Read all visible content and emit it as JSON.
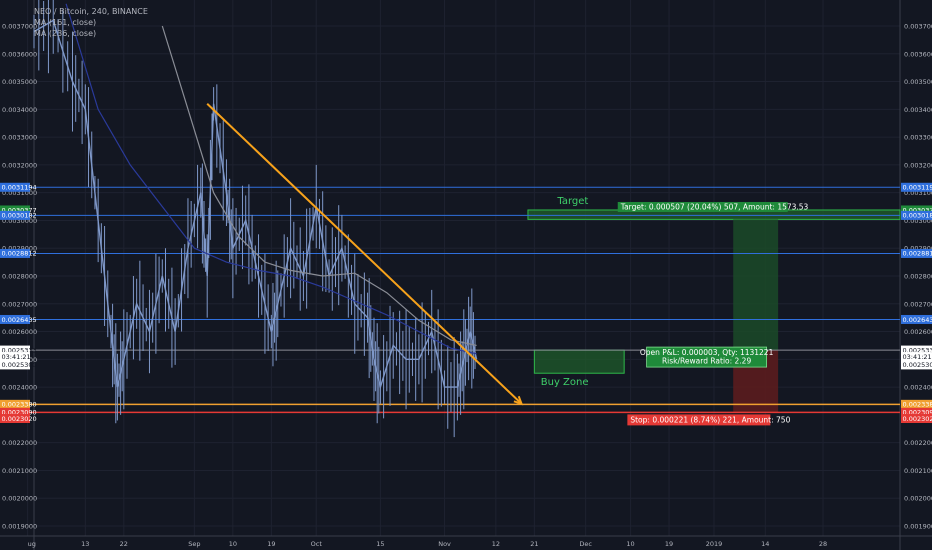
{
  "header": {
    "symbol_line": "NEO / Bitcoin, 240, BINANCE",
    "ma1": "MA (161, close)",
    "ma2": "MA (236, close)"
  },
  "colors": {
    "background": "#131722",
    "grid": "#1e2230",
    "candle": "#7f98c9",
    "ma161": "#2a3a9a",
    "ma236": "#8a8d96",
    "trendline": "#f7a21b",
    "horizontal": "#2f6fdc",
    "stop_line": "#e53935",
    "orange_line": "#f0a030",
    "target_zone": "#1f5c2b",
    "buy_zone": "#1f5c2b"
  },
  "chart_data": {
    "type": "line",
    "title": "",
    "xlabel": "",
    "ylabel": "",
    "x_ticks": [
      "ug",
      "13",
      "22",
      "Sep",
      "10",
      "19",
      "Oct",
      "15",
      "Nov",
      "12",
      "21",
      "Dec",
      "10",
      "19",
      "2019",
      "14",
      "28"
    ],
    "y_ticks": [
      "0.0037000",
      "0.0036000",
      "0.0035000",
      "0.0034000",
      "0.0033000",
      "0.0032000",
      "0.0031000",
      "0.0030000",
      "0.0029000",
      "0.0028000",
      "0.0027000",
      "0.0026000",
      "0.0025000",
      "0.0024000",
      "0.0022000",
      "0.0021000",
      "0.0020000",
      "0.0019000"
    ],
    "ylim": [
      0.00187,
      0.00376
    ],
    "grid": true,
    "series": [
      {
        "kind": "price",
        "points": [
          [
            0,
            0.00368
          ],
          [
            3,
            0.00372
          ],
          [
            6,
            0.0035
          ],
          [
            8,
            0.0034
          ],
          [
            10,
            0.003
          ],
          [
            12,
            0.0026
          ],
          [
            13,
            0.0024
          ],
          [
            14,
            0.0025
          ],
          [
            16,
            0.0027
          ],
          [
            18,
            0.0026
          ],
          [
            20,
            0.0028
          ],
          [
            22,
            0.0026
          ],
          [
            24,
            0.0029
          ],
          [
            26,
            0.0031
          ],
          [
            27,
            0.0028
          ],
          [
            28,
            0.00342
          ],
          [
            30,
            0.0031
          ],
          [
            31,
            0.0029
          ],
          [
            33,
            0.003
          ],
          [
            35,
            0.0028
          ],
          [
            37,
            0.0026
          ],
          [
            38,
            0.0027
          ],
          [
            40,
            0.0029
          ],
          [
            42,
            0.0028
          ],
          [
            44,
            0.00305
          ],
          [
            46,
            0.0028
          ],
          [
            48,
            0.0029
          ],
          [
            50,
            0.0027
          ],
          [
            52,
            0.00265
          ],
          [
            53,
            0.0025
          ],
          [
            54,
            0.0024
          ],
          [
            56,
            0.00255
          ],
          [
            58,
            0.0025
          ],
          [
            60,
            0.0025
          ],
          [
            62,
            0.0026
          ],
          [
            64,
            0.0024
          ],
          [
            66,
            0.0024
          ],
          [
            67,
            0.0025
          ],
          [
            68,
            0.0026
          ],
          [
            69,
            0.0025
          ]
        ]
      },
      {
        "name": "MA (161, close)",
        "kind": "ma161",
        "points": [
          [
            5,
            0.00378
          ],
          [
            10,
            0.0034
          ],
          [
            15,
            0.0032
          ],
          [
            20,
            0.00305
          ],
          [
            25,
            0.0029
          ],
          [
            30,
            0.00285
          ],
          [
            35,
            0.00282
          ],
          [
            40,
            0.0028
          ],
          [
            45,
            0.00276
          ],
          [
            50,
            0.00271
          ],
          [
            55,
            0.00266
          ],
          [
            60,
            0.0026
          ],
          [
            65,
            0.00254
          ],
          [
            69,
            0.00252
          ]
        ]
      },
      {
        "name": "MA (236, close)",
        "kind": "ma236",
        "points": [
          [
            20,
            0.0037
          ],
          [
            24,
            0.0034
          ],
          [
            28,
            0.0031
          ],
          [
            32,
            0.00294
          ],
          [
            36,
            0.00285
          ],
          [
            40,
            0.00282
          ],
          [
            45,
            0.0028
          ],
          [
            50,
            0.00281
          ],
          [
            55,
            0.00274
          ],
          [
            60,
            0.00264
          ],
          [
            65,
            0.00257
          ],
          [
            69,
            0.00255
          ]
        ]
      }
    ],
    "x_range": [
      0,
      135
    ],
    "x_tick_positions": [
      -1,
      8,
      14,
      25,
      31,
      37,
      44,
      54,
      64,
      72,
      78,
      86,
      93,
      99,
      106,
      114,
      123
    ],
    "horizontal_lines": [
      {
        "kind": "blue",
        "value": 0.0031194
      },
      {
        "kind": "blue",
        "value": 0.0030182
      },
      {
        "kind": "blue",
        "value": 0.0028812
      },
      {
        "kind": "blue",
        "value": 0.0026435
      },
      {
        "kind": "gray",
        "value": 0.0025333
      },
      {
        "kind": "orange",
        "value": 0.002338
      },
      {
        "kind": "red",
        "value": 0.002309
      }
    ],
    "trendline": [
      [
        27,
        0.00342
      ],
      [
        76,
        0.00234
      ]
    ],
    "price_tags": [
      {
        "label": "0.0031194",
        "value": 0.0031194,
        "bg": "#2f6fdc",
        "fg": "#ffffff"
      },
      {
        "label": "0.0030377",
        "value": 0.0030377,
        "bg": "#1f8a3a",
        "fg": "#ffffff"
      },
      {
        "label": "0.0030182",
        "value": 0.0030182,
        "bg": "#2f6fdc",
        "fg": "#ffffff"
      },
      {
        "label": "0.0028812",
        "value": 0.0028812,
        "bg": "#2f6fdc",
        "fg": "#ffffff"
      },
      {
        "label": "0.0026435",
        "value": 0.0026435,
        "bg": "#2f6fdc",
        "fg": "#ffffff"
      },
      {
        "label": "0.0025333",
        "value": 0.0025333,
        "bg": "#ffffff",
        "fg": "#131722"
      },
      {
        "label": "03:41:21",
        "value": 0.00251,
        "bg": "#ffffff",
        "fg": "#131722"
      },
      {
        "label": "0.0025300",
        "value": 0.00248,
        "bg": "#ffffff",
        "fg": "#131722"
      },
      {
        "label": "0.0023380",
        "value": 0.002338,
        "bg": "#f0a030",
        "fg": "#ffffff"
      },
      {
        "label": "0.0023090",
        "value": 0.002309,
        "bg": "#e53935",
        "fg": "#ffffff"
      },
      {
        "label": "0.0023020",
        "value": 0.002287,
        "bg": "#e53935",
        "fg": "#ffffff"
      }
    ],
    "annotations": {
      "target_label": "Target",
      "target_text": "Target: 0.000507 (20.04%) 507, Amount: 1573.53",
      "open_pnl_line1": "Open P&L: 0.000003, Qty: 1131221",
      "open_pnl_line2": "Risk/Reward Ratio: 2.29",
      "stop_text": "Stop: 0.000221 (8.74%) 221, Amount: 750",
      "buy_zone": "Buy Zone"
    }
  }
}
